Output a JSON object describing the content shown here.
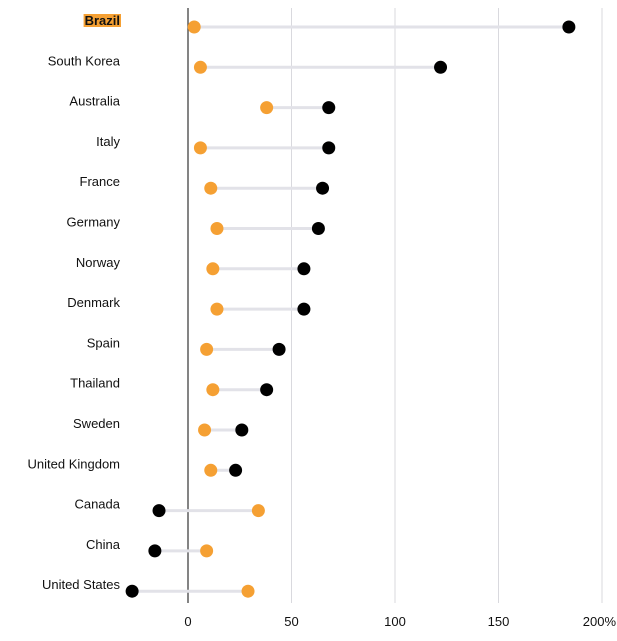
{
  "chart_data": {
    "type": "dumbbell",
    "title": "",
    "xlabel": "",
    "ylabel": "",
    "xlim": [
      -30,
      200
    ],
    "x_ticks": [
      0,
      50,
      100,
      150,
      200
    ],
    "x_tick_labels": [
      "0",
      "50",
      "100",
      "150",
      "200%"
    ],
    "grid": true,
    "highlighted_category": "Brazil",
    "categories": [
      "Brazil",
      "South Korea",
      "Australia",
      "Italy",
      "France",
      "Germany",
      "Norway",
      "Denmark",
      "Spain",
      "Thailand",
      "Sweden",
      "United Kingdom",
      "Canada",
      "China",
      "United States"
    ],
    "series": [
      {
        "color": "#f5a033",
        "values": [
          3,
          6,
          38,
          6,
          11,
          14,
          12,
          14,
          9,
          12,
          8,
          11,
          34,
          9,
          29
        ]
      },
      {
        "color": "#000000",
        "values": [
          184,
          122,
          68,
          68,
          65,
          63,
          56,
          56,
          44,
          38,
          26,
          23,
          -14,
          -16,
          -27
        ]
      }
    ],
    "colors": {
      "connector": "#e2e2e8",
      "grid": "#d9d9de",
      "zero_line": "#333333",
      "highlight_bg": "#f5a033"
    }
  }
}
